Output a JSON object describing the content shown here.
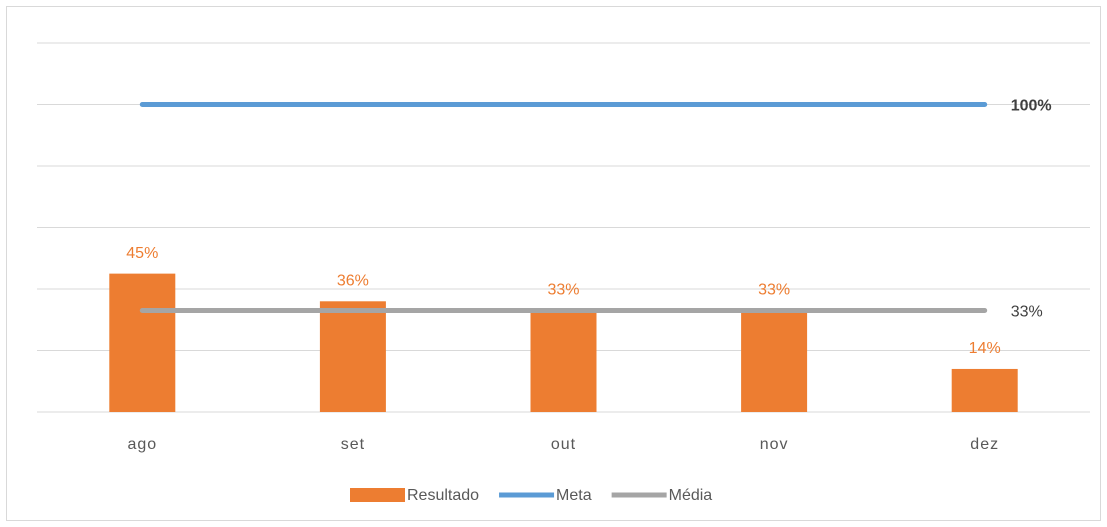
{
  "chart_data": {
    "type": "bar",
    "categories": [
      "ago",
      "set",
      "out",
      "nov",
      "dez"
    ],
    "series": [
      {
        "name": "Resultado",
        "type": "bar",
        "color": "#ed7d31",
        "values": [
          45,
          36,
          33,
          33,
          14
        ],
        "value_labels": [
          "45%",
          "36%",
          "33%",
          "33%",
          "14%"
        ]
      },
      {
        "name": "Meta",
        "type": "line",
        "color": "#5b9bd5",
        "values": [
          100,
          100,
          100,
          100,
          100
        ],
        "value_labels": [
          null,
          null,
          null,
          null,
          "100%"
        ]
      },
      {
        "name": "Média",
        "type": "line",
        "color": "#a5a5a5",
        "values": [
          33,
          33,
          33,
          33,
          33
        ],
        "value_labels": [
          null,
          null,
          null,
          null,
          "33%"
        ]
      }
    ],
    "ylim": [
      0,
      120
    ],
    "yticks": [
      0,
      20,
      40,
      60,
      80,
      100,
      120
    ],
    "grid": true,
    "legend": "bottom"
  }
}
